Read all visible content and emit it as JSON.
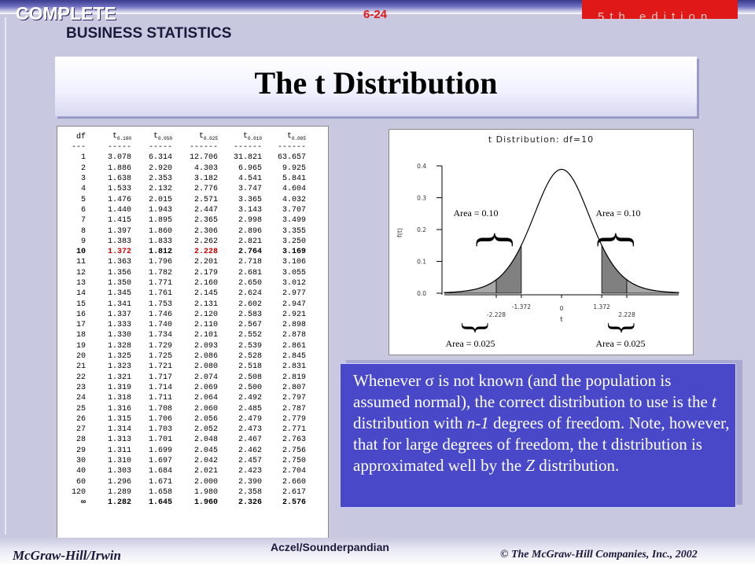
{
  "header": {
    "brand_top": "COMPLETE",
    "brand_bottom": "BUSINESS STATISTICS",
    "slide_number": "6-24",
    "edition": "5th edition"
  },
  "title": "The t Distribution",
  "table": {
    "headers": [
      "df",
      "t0.100",
      "t0.050",
      "t0.025",
      "t0.010",
      "t0.005"
    ],
    "header_parts": [
      {
        "main": "df",
        "sub": ""
      },
      {
        "main": "t",
        "sub": "0.100"
      },
      {
        "main": "t",
        "sub": "0.050"
      },
      {
        "main": "t",
        "sub": "0.025"
      },
      {
        "main": "t",
        "sub": "0.010"
      },
      {
        "main": "t",
        "sub": "0.005"
      }
    ],
    "dashes": [
      "---",
      "-----",
      "-----",
      "------",
      "------",
      "------"
    ],
    "highlight_df": "10",
    "rows": [
      [
        "1",
        "3.078",
        "6.314",
        "12.706",
        "31.821",
        "63.657"
      ],
      [
        "2",
        "1.886",
        "2.920",
        "4.303",
        "6.965",
        "9.925"
      ],
      [
        "3",
        "1.638",
        "2.353",
        "3.182",
        "4.541",
        "5.841"
      ],
      [
        "4",
        "1.533",
        "2.132",
        "2.776",
        "3.747",
        "4.604"
      ],
      [
        "5",
        "1.476",
        "2.015",
        "2.571",
        "3.365",
        "4.032"
      ],
      [
        "6",
        "1.440",
        "1.943",
        "2.447",
        "3.143",
        "3.707"
      ],
      [
        "7",
        "1.415",
        "1.895",
        "2.365",
        "2.998",
        "3.499"
      ],
      [
        "8",
        "1.397",
        "1.860",
        "2.306",
        "2.896",
        "3.355"
      ],
      [
        "9",
        "1.383",
        "1.833",
        "2.262",
        "2.821",
        "3.250"
      ],
      [
        "10",
        "1.372",
        "1.812",
        "2.228",
        "2.764",
        "3.169"
      ],
      [
        "11",
        "1.363",
        "1.796",
        "2.201",
        "2.718",
        "3.106"
      ],
      [
        "12",
        "1.356",
        "1.782",
        "2.179",
        "2.681",
        "3.055"
      ],
      [
        "13",
        "1.350",
        "1.771",
        "2.160",
        "2.650",
        "3.012"
      ],
      [
        "14",
        "1.345",
        "1.761",
        "2.145",
        "2.624",
        "2.977"
      ],
      [
        "15",
        "1.341",
        "1.753",
        "2.131",
        "2.602",
        "2.947"
      ],
      [
        "16",
        "1.337",
        "1.746",
        "2.120",
        "2.583",
        "2.921"
      ],
      [
        "17",
        "1.333",
        "1.740",
        "2.110",
        "2.567",
        "2.898"
      ],
      [
        "18",
        "1.330",
        "1.734",
        "2.101",
        "2.552",
        "2.878"
      ],
      [
        "19",
        "1.328",
        "1.729",
        "2.093",
        "2.539",
        "2.861"
      ],
      [
        "20",
        "1.325",
        "1.725",
        "2.086",
        "2.528",
        "2.845"
      ],
      [
        "21",
        "1.323",
        "1.721",
        "2.080",
        "2.518",
        "2.831"
      ],
      [
        "22",
        "1.321",
        "1.717",
        "2.074",
        "2.508",
        "2.819"
      ],
      [
        "23",
        "1.319",
        "1.714",
        "2.069",
        "2.500",
        "2.807"
      ],
      [
        "24",
        "1.318",
        "1.711",
        "2.064",
        "2.492",
        "2.797"
      ],
      [
        "25",
        "1.316",
        "1.708",
        "2.060",
        "2.485",
        "2.787"
      ],
      [
        "26",
        "1.315",
        "1.706",
        "2.056",
        "2.479",
        "2.779"
      ],
      [
        "27",
        "1.314",
        "1.703",
        "2.052",
        "2.473",
        "2.771"
      ],
      [
        "28",
        "1.313",
        "1.701",
        "2.048",
        "2.467",
        "2.763"
      ],
      [
        "29",
        "1.311",
        "1.699",
        "2.045",
        "2.462",
        "2.756"
      ],
      [
        "30",
        "1.310",
        "1.697",
        "2.042",
        "2.457",
        "2.750"
      ],
      [
        "40",
        "1.303",
        "1.684",
        "2.021",
        "2.423",
        "2.704"
      ],
      [
        "60",
        "1.296",
        "1.671",
        "2.000",
        "2.390",
        "2.660"
      ],
      [
        "120",
        "1.289",
        "1.658",
        "1.980",
        "2.358",
        "2.617"
      ],
      [
        "∞",
        "1.282",
        "1.645",
        "1.960",
        "2.326",
        "2.576"
      ]
    ]
  },
  "chart_data": {
    "type": "area",
    "title": "t Distribution: df=10",
    "ylabel": "f(t)",
    "xlabel": "t",
    "df": 10,
    "ylim": [
      0.0,
      0.4
    ],
    "xlim": [
      -4,
      4
    ],
    "yticks": [
      "0.0",
      "0.1",
      "0.2",
      "0.3",
      "0.4"
    ],
    "ytick_values": [
      0.0,
      0.1,
      0.2,
      0.3,
      0.4
    ],
    "xtick_labels": [
      "-2.228",
      "-1.372",
      "0",
      "1.372",
      "2.228"
    ],
    "xtick_values": [
      -2.228,
      -1.372,
      0,
      1.372,
      2.228
    ],
    "shaded_regions": [
      {
        "from": -4,
        "to": -2.228,
        "area": 0.025,
        "label": "Area = 0.025"
      },
      {
        "from": -2.228,
        "to": -1.372,
        "area": 0.075,
        "label": ""
      },
      {
        "from": 1.372,
        "to": 2.228,
        "area": 0.075,
        "label": ""
      },
      {
        "from": 2.228,
        "to": 4,
        "area": 0.025,
        "label": "Area = 0.025"
      }
    ],
    "annotations": [
      "Area = 0.10",
      "Area = 0.10",
      "Area = 0.025",
      "Area = 0.025"
    ],
    "grid": false
  },
  "note": {
    "segments": [
      {
        "text": "Whenever ",
        "style": "normal"
      },
      {
        "text": "σ",
        "style": "normal"
      },
      {
        "text": " is not known (and the population is assumed normal), the correct distribution to use is the ",
        "style": "normal"
      },
      {
        "text": "t",
        "style": "italic"
      },
      {
        "text": " distribution with ",
        "style": "normal"
      },
      {
        "text": "n-1",
        "style": "italic"
      },
      {
        "text": " degrees of freedom. Note, however, that for large degrees of freedom, the t distribution is approximated well by the ",
        "style": "normal"
      },
      {
        "text": "Z",
        "style": "italic"
      },
      {
        "text": " distribution.",
        "style": "normal"
      }
    ]
  },
  "footer": {
    "left": "McGraw-Hill/Irwin",
    "center": "Aczel/Sounderpandian",
    "right": "© The McGraw-Hill Companies, Inc., 2002"
  },
  "colors": {
    "background": "#c8c8e0",
    "accent_red": "#e01818",
    "note_bg": "#4848c8",
    "highlight": "#cc0000",
    "tail_dark": "#808080",
    "tail_mid": "#a8a8a8"
  }
}
